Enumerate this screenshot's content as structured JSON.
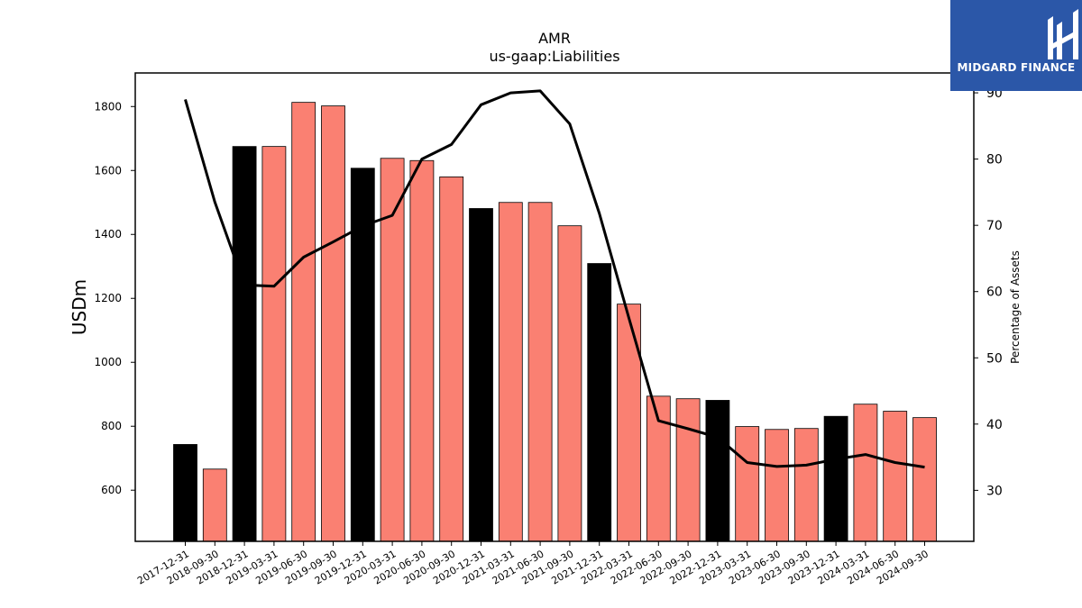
{
  "logo": {
    "text": "MIDGARD FINANCE",
    "background": "#2b57a8"
  },
  "chart_data": {
    "type": "bar",
    "title": "AMR",
    "subtitle": "us-gaap:Liabilities",
    "ylabel": "USDm",
    "ylabel_right": "Percentage of Assets",
    "ylim": [
      440,
      1905
    ],
    "ylim_right": [
      22.3,
      93
    ],
    "yticks": [
      600,
      800,
      1000,
      1200,
      1400,
      1600,
      1800
    ],
    "yticks_right": [
      30,
      40,
      50,
      60,
      70,
      80,
      90
    ],
    "grid": false,
    "categories": [
      "2017-12-31",
      "2018-09-30",
      "2018-12-31",
      "2019-03-31",
      "2019-06-30",
      "2019-09-30",
      "2019-12-31",
      "2020-03-31",
      "2020-06-30",
      "2020-09-30",
      "2020-12-31",
      "2021-03-31",
      "2021-06-30",
      "2021-09-30",
      "2021-12-31",
      "2022-03-31",
      "2022-06-30",
      "2022-09-30",
      "2022-12-31",
      "2023-03-31",
      "2023-06-30",
      "2023-09-30",
      "2023-12-31",
      "2024-03-31",
      "2024-06-30",
      "2024-09-30"
    ],
    "series": [
      {
        "kind": "bar",
        "values": [
          743,
          666,
          1675,
          1675,
          1813,
          1802,
          1607,
          1638,
          1631,
          1580,
          1481,
          1500,
          1500,
          1427,
          1309,
          1182,
          894,
          886,
          881,
          799,
          790,
          793,
          831,
          869,
          847,
          827
        ],
        "annual_color": "#000000",
        "quarterly_color": "#fa8072",
        "annual_flags": [
          true,
          false,
          true,
          false,
          false,
          false,
          true,
          false,
          false,
          false,
          true,
          false,
          false,
          false,
          true,
          false,
          false,
          false,
          true,
          false,
          false,
          false,
          true,
          false,
          false,
          false
        ]
      },
      {
        "kind": "line",
        "axis": "right",
        "color": "#000000",
        "values": [
          89.0,
          73.5,
          61.0,
          60.8,
          65.2,
          67.5,
          69.9,
          71.5,
          80.0,
          82.2,
          88.2,
          90.0,
          90.3,
          85.3,
          71.8,
          56.0,
          40.5,
          39.3,
          38.0,
          34.2,
          33.6,
          33.8,
          34.7,
          35.4,
          34.2,
          33.5
        ]
      }
    ]
  }
}
